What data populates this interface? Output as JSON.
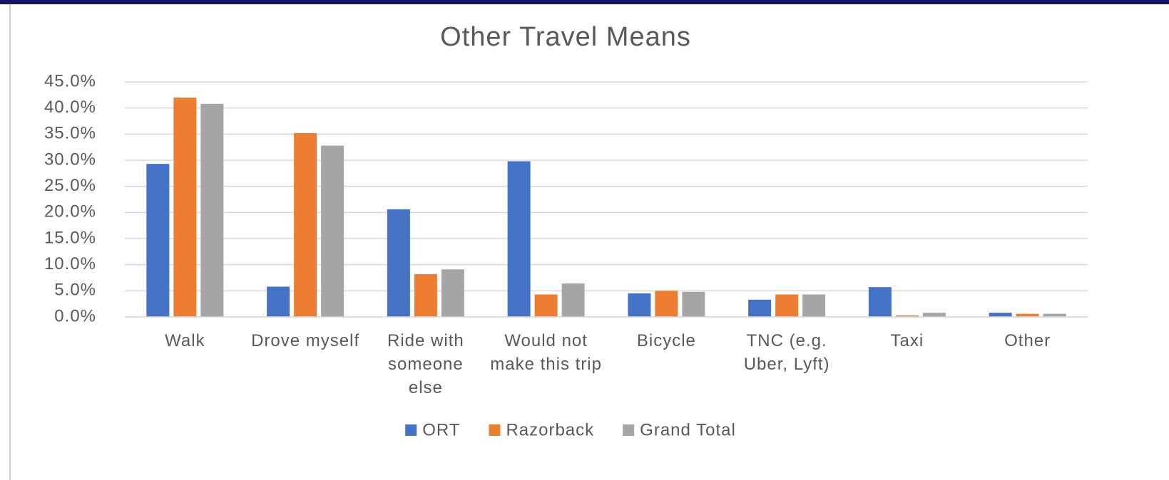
{
  "chart_data": {
    "type": "bar",
    "title": "Other Travel Means",
    "categories": [
      "Walk",
      "Drove myself",
      "Ride with someone else",
      "Would not make this trip",
      "Bicycle",
      "TNC (e.g. Uber, Lyft)",
      "Taxi",
      "Other"
    ],
    "series": [
      {
        "name": "ORT",
        "color": "#4472c4",
        "values": [
          29.3,
          5.8,
          20.6,
          29.8,
          4.5,
          3.3,
          5.7,
          0.8
        ]
      },
      {
        "name": "Razorback",
        "color": "#ed7d31",
        "values": [
          42.0,
          35.2,
          8.2,
          4.3,
          5.0,
          4.3,
          0.3,
          0.6
        ]
      },
      {
        "name": "Grand Total",
        "color": "#a5a5a5",
        "values": [
          40.8,
          32.8,
          9.1,
          6.4,
          4.8,
          4.3,
          0.8,
          0.6
        ]
      }
    ],
    "ylim": [
      0,
      45
    ],
    "yticks": [
      {
        "value": 0,
        "label": "0.0%"
      },
      {
        "value": 5,
        "label": "5.0%"
      },
      {
        "value": 10,
        "label": "10.0%"
      },
      {
        "value": 15,
        "label": "15.0%"
      },
      {
        "value": 20,
        "label": "20.0%"
      },
      {
        "value": 25,
        "label": "25.0%"
      },
      {
        "value": 30,
        "label": "30.0%"
      },
      {
        "value": 35,
        "label": "35.0%"
      },
      {
        "value": 40,
        "label": "40.0%"
      },
      {
        "value": 45,
        "label": "45.0%"
      }
    ],
    "grid": true,
    "legend": "bottom"
  }
}
